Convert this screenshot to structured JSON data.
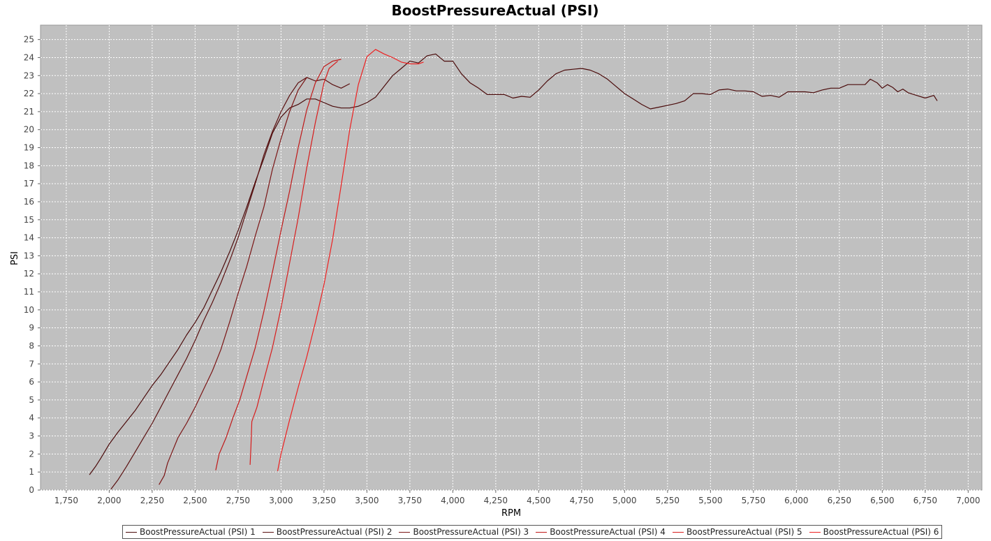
{
  "chart_data": {
    "type": "line",
    "title": "BoostPressureActual (PSI)",
    "xlabel": "RPM",
    "ylabel": "PSI",
    "xlim": [
      1600,
      7080
    ],
    "ylim": [
      0,
      25.8
    ],
    "x_ticks": [
      "1,750",
      "2,000",
      "2,250",
      "2,500",
      "2,750",
      "3,000",
      "3,250",
      "3,500",
      "3,750",
      "4,000",
      "4,250",
      "4,500",
      "4,750",
      "5,000",
      "5,250",
      "5,500",
      "5,750",
      "6,000",
      "6,250",
      "6,500",
      "6,750",
      "7,000"
    ],
    "y_ticks": [
      "0",
      "1",
      "2",
      "3",
      "4",
      "5",
      "6",
      "7",
      "8",
      "9",
      "10",
      "11",
      "12",
      "13",
      "14",
      "15",
      "16",
      "17",
      "18",
      "19",
      "20",
      "21",
      "22",
      "23",
      "24",
      "25"
    ],
    "grid": true,
    "plot_background": "#c0c0c0",
    "legend_position": "bottom",
    "series": [
      {
        "name": "BoostPressureActual (PSI) 1",
        "color": "#4a0a0a",
        "points": [
          [
            1885,
            0.85
          ],
          [
            1920,
            1.3
          ],
          [
            1950,
            1.75
          ],
          [
            2000,
            2.55
          ],
          [
            2050,
            3.2
          ],
          [
            2100,
            3.8
          ],
          [
            2150,
            4.4
          ],
          [
            2200,
            5.1
          ],
          [
            2250,
            5.8
          ],
          [
            2300,
            6.4
          ],
          [
            2350,
            7.1
          ],
          [
            2400,
            7.8
          ],
          [
            2450,
            8.6
          ],
          [
            2500,
            9.3
          ],
          [
            2550,
            10.1
          ],
          [
            2600,
            11.1
          ],
          [
            2650,
            12.1
          ],
          [
            2700,
            13.2
          ],
          [
            2750,
            14.4
          ],
          [
            2800,
            15.7
          ],
          [
            2850,
            17.1
          ],
          [
            2900,
            18.4
          ],
          [
            2950,
            19.8
          ],
          [
            3000,
            20.7
          ],
          [
            3050,
            21.2
          ],
          [
            3100,
            21.4
          ],
          [
            3150,
            21.7
          ],
          [
            3200,
            21.7
          ],
          [
            3250,
            21.5
          ],
          [
            3300,
            21.3
          ],
          [
            3350,
            21.2
          ],
          [
            3400,
            21.2
          ],
          [
            3450,
            21.3
          ],
          [
            3500,
            21.5
          ],
          [
            3550,
            21.8
          ],
          [
            3600,
            22.4
          ],
          [
            3650,
            23.0
          ],
          [
            3700,
            23.4
          ],
          [
            3750,
            23.8
          ],
          [
            3800,
            23.7
          ],
          [
            3850,
            24.1
          ],
          [
            3900,
            24.2
          ],
          [
            3950,
            23.8
          ],
          [
            4000,
            23.8
          ],
          [
            4050,
            23.1
          ],
          [
            4100,
            22.6
          ],
          [
            4150,
            22.3
          ],
          [
            4200,
            21.95
          ],
          [
            4250,
            21.95
          ],
          [
            4300,
            21.95
          ],
          [
            4350,
            21.75
          ],
          [
            4400,
            21.85
          ],
          [
            4450,
            21.8
          ],
          [
            4500,
            22.2
          ],
          [
            4550,
            22.7
          ],
          [
            4600,
            23.1
          ],
          [
            4650,
            23.3
          ],
          [
            4700,
            23.35
          ],
          [
            4750,
            23.4
          ],
          [
            4800,
            23.3
          ],
          [
            4850,
            23.1
          ],
          [
            4900,
            22.8
          ],
          [
            4950,
            22.4
          ],
          [
            5000,
            22.0
          ],
          [
            5050,
            21.7
          ],
          [
            5100,
            21.4
          ],
          [
            5150,
            21.15
          ],
          [
            5200,
            21.25
          ],
          [
            5250,
            21.35
          ],
          [
            5300,
            21.45
          ],
          [
            5350,
            21.6
          ],
          [
            5400,
            22.0
          ],
          [
            5450,
            22.0
          ],
          [
            5500,
            21.95
          ],
          [
            5550,
            22.2
          ],
          [
            5600,
            22.25
          ],
          [
            5650,
            22.15
          ],
          [
            5700,
            22.15
          ],
          [
            5750,
            22.1
          ],
          [
            5800,
            21.85
          ],
          [
            5850,
            21.9
          ],
          [
            5900,
            21.8
          ],
          [
            5950,
            22.1
          ],
          [
            6000,
            22.1
          ],
          [
            6050,
            22.1
          ],
          [
            6100,
            22.05
          ],
          [
            6150,
            22.2
          ],
          [
            6200,
            22.3
          ],
          [
            6250,
            22.3
          ],
          [
            6300,
            22.5
          ],
          [
            6350,
            22.5
          ],
          [
            6400,
            22.5
          ],
          [
            6430,
            22.8
          ],
          [
            6470,
            22.6
          ],
          [
            6500,
            22.3
          ],
          [
            6530,
            22.5
          ],
          [
            6560,
            22.35
          ],
          [
            6590,
            22.1
          ],
          [
            6620,
            22.25
          ],
          [
            6650,
            22.05
          ],
          [
            6700,
            21.9
          ],
          [
            6750,
            21.75
          ],
          [
            6800,
            21.9
          ],
          [
            6820,
            21.6
          ]
        ]
      },
      {
        "name": "BoostPressureActual (PSI) 2",
        "color": "#5a1010",
        "points": [
          [
            2010,
            0.05
          ],
          [
            2050,
            0.55
          ],
          [
            2100,
            1.3
          ],
          [
            2150,
            2.1
          ],
          [
            2200,
            2.9
          ],
          [
            2250,
            3.7
          ],
          [
            2300,
            4.6
          ],
          [
            2350,
            5.5
          ],
          [
            2400,
            6.4
          ],
          [
            2450,
            7.3
          ],
          [
            2500,
            8.3
          ],
          [
            2550,
            9.4
          ],
          [
            2600,
            10.4
          ],
          [
            2650,
            11.5
          ],
          [
            2700,
            12.7
          ],
          [
            2750,
            14.0
          ],
          [
            2800,
            15.5
          ],
          [
            2850,
            17.0
          ],
          [
            2900,
            18.6
          ],
          [
            2950,
            19.9
          ],
          [
            3000,
            21.0
          ],
          [
            3050,
            21.9
          ],
          [
            3100,
            22.6
          ],
          [
            3150,
            22.9
          ],
          [
            3200,
            22.7
          ],
          [
            3250,
            22.8
          ],
          [
            3300,
            22.5
          ],
          [
            3350,
            22.3
          ],
          [
            3400,
            22.55
          ]
        ]
      },
      {
        "name": "BoostPressureActual (PSI) 3",
        "color": "#7a1414",
        "points": [
          [
            2290,
            0.3
          ],
          [
            2320,
            0.8
          ],
          [
            2340,
            1.5
          ],
          [
            2370,
            2.2
          ],
          [
            2400,
            2.9
          ],
          [
            2450,
            3.7
          ],
          [
            2500,
            4.6
          ],
          [
            2550,
            5.6
          ],
          [
            2600,
            6.6
          ],
          [
            2650,
            7.8
          ],
          [
            2700,
            9.3
          ],
          [
            2750,
            10.9
          ],
          [
            2800,
            12.4
          ],
          [
            2850,
            14.1
          ],
          [
            2900,
            15.7
          ],
          [
            2950,
            17.8
          ],
          [
            3000,
            19.5
          ],
          [
            3050,
            21.0
          ],
          [
            3100,
            22.2
          ],
          [
            3150,
            22.9
          ]
        ]
      },
      {
        "name": "BoostPressureActual (PSI) 4",
        "color": "#c01818",
        "points": [
          [
            2620,
            1.1
          ],
          [
            2640,
            2.0
          ],
          [
            2680,
            2.9
          ],
          [
            2720,
            4.0
          ],
          [
            2760,
            5.0
          ],
          [
            2800,
            6.3
          ],
          [
            2850,
            7.9
          ],
          [
            2900,
            9.9
          ],
          [
            2950,
            12.1
          ],
          [
            3000,
            14.4
          ],
          [
            3050,
            16.6
          ],
          [
            3100,
            19.0
          ],
          [
            3150,
            21.1
          ],
          [
            3200,
            22.6
          ],
          [
            3250,
            23.5
          ],
          [
            3300,
            23.8
          ],
          [
            3350,
            23.9
          ]
        ]
      },
      {
        "name": "BoostPressureActual (PSI) 5",
        "color": "#d81c1c",
        "points": [
          [
            2820,
            1.4
          ],
          [
            2825,
            2.4
          ],
          [
            2830,
            3.8
          ],
          [
            2860,
            4.6
          ],
          [
            2900,
            6.1
          ],
          [
            2950,
            7.9
          ],
          [
            3000,
            10.1
          ],
          [
            3050,
            12.6
          ],
          [
            3100,
            15.1
          ],
          [
            3150,
            17.9
          ],
          [
            3200,
            20.4
          ],
          [
            3250,
            22.6
          ],
          [
            3280,
            23.4
          ],
          [
            3330,
            23.8
          ]
        ]
      },
      {
        "name": "BoostPressureActual (PSI) 6",
        "color": "#ee2020",
        "points": [
          [
            2980,
            1.05
          ],
          [
            3000,
            2.0
          ],
          [
            3050,
            3.9
          ],
          [
            3100,
            5.7
          ],
          [
            3150,
            7.4
          ],
          [
            3200,
            9.3
          ],
          [
            3250,
            11.4
          ],
          [
            3300,
            13.9
          ],
          [
            3350,
            16.9
          ],
          [
            3400,
            20.0
          ],
          [
            3450,
            22.5
          ],
          [
            3500,
            24.05
          ],
          [
            3550,
            24.45
          ],
          [
            3600,
            24.2
          ],
          [
            3650,
            24.0
          ],
          [
            3700,
            23.75
          ],
          [
            3750,
            23.65
          ],
          [
            3800,
            23.65
          ],
          [
            3830,
            23.75
          ]
        ]
      }
    ]
  }
}
